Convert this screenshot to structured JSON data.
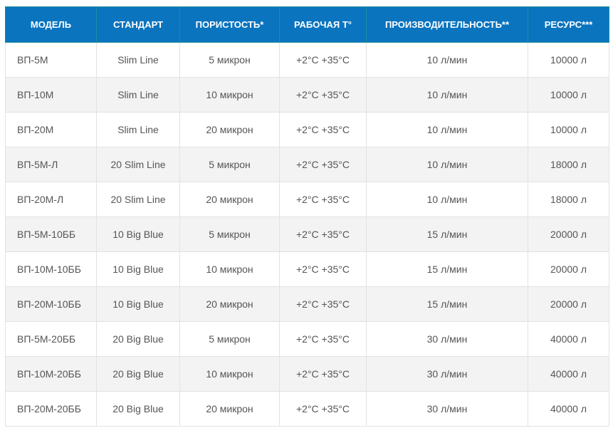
{
  "colors": {
    "header_bg": "#0a74bf",
    "header_text": "#ffffff",
    "stripe": "#f3f3f3"
  },
  "headers": [
    "МОДЕЛЬ",
    "СТАНДАРТ",
    "ПОРИСТОСТЬ*",
    "РАБОЧАЯ Т°",
    "ПРОИЗВОДИТЕЛЬНОСТЬ**",
    "РЕСУРС***"
  ],
  "rows": [
    [
      "ВП-5М",
      "Slim Line",
      "5 микрон",
      "+2°C +35°C",
      "10 л/мин",
      "10000 л"
    ],
    [
      "ВП-10М",
      "Slim Line",
      "10 микрон",
      "+2°C +35°C",
      "10 л/мин",
      "10000 л"
    ],
    [
      "ВП-20М",
      "Slim Line",
      "20 микрон",
      "+2°C +35°C",
      "10 л/мин",
      "10000 л"
    ],
    [
      "ВП-5М-Л",
      "20 Slim Line",
      "5 микрон",
      "+2°C +35°C",
      "10 л/мин",
      "18000 л"
    ],
    [
      "ВП-20М-Л",
      "20 Slim Line",
      "20 микрон",
      "+2°C +35°C",
      "10 л/мин",
      "18000 л"
    ],
    [
      "ВП-5М-10ББ",
      "10 Big Blue",
      "5 микрон",
      "+2°C +35°C",
      "15 л/мин",
      "20000 л"
    ],
    [
      "ВП-10М-10ББ",
      "10 Big Blue",
      "10 микрон",
      "+2°C +35°C",
      "15 л/мин",
      "20000 л"
    ],
    [
      "ВП-20М-10ББ",
      "10 Big Blue",
      "20 микрон",
      "+2°C +35°C",
      "15 л/мин",
      "20000 л"
    ],
    [
      "ВП-5М-20ББ",
      "20 Big Blue",
      "5 микрон",
      "+2°C +35°C",
      "30 л/мин",
      "40000 л"
    ],
    [
      "ВП-10М-20ББ",
      "20 Big Blue",
      "10 микрон",
      "+2°C +35°C",
      "30 л/мин",
      "40000 л"
    ],
    [
      "ВП-20М-20ББ",
      "20 Big Blue",
      "20 микрон",
      "+2°C +35°C",
      "30 л/мин",
      "40000 л"
    ]
  ]
}
